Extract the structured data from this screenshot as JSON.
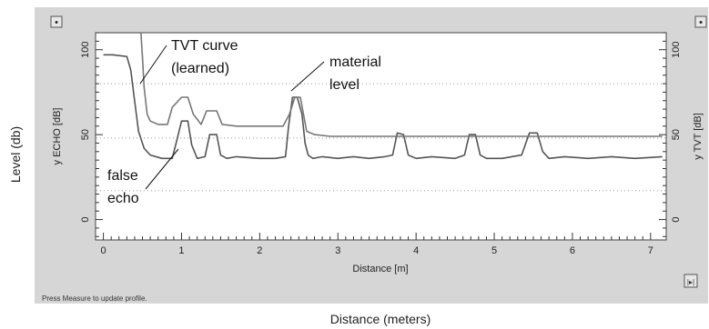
{
  "outer_labels": {
    "y_title": "Level (db)",
    "x_title": "Distance (meters)"
  },
  "status_text": "Press Measure to update profile.",
  "window_buttons": {
    "left_label": "•",
    "right_label": "•",
    "corner_label": "|▸|"
  },
  "chart_data": {
    "type": "line",
    "xlabel": "Distance [m]",
    "ylabel_left": "y ECHO [dB]",
    "ylabel_right": "y TVT [dB]",
    "xlim": [
      -0.1,
      7.2
    ],
    "ylim": [
      -12,
      110
    ],
    "x_ticks": [
      0,
      1,
      2,
      3,
      4,
      5,
      6,
      7
    ],
    "y_ticks": [
      0,
      50,
      100
    ],
    "dotted_grid_levels": [
      17,
      48,
      80
    ],
    "series": [
      {
        "x": [
          0,
          0.12,
          0.3,
          0.35,
          0.4,
          0.45,
          0.52,
          0.6,
          0.75,
          0.88,
          0.93,
          1.0,
          1.08,
          1.13,
          1.2,
          1.3,
          1.36,
          1.45,
          1.5,
          1.58,
          1.7,
          2.0,
          2.2,
          2.33,
          2.37,
          2.42,
          2.48,
          2.54,
          2.58,
          2.62,
          2.68,
          2.8,
          3.0,
          3.2,
          3.4,
          3.6,
          3.7,
          3.76,
          3.84,
          3.9,
          4.0,
          4.2,
          4.5,
          4.62,
          4.68,
          4.76,
          4.82,
          4.9,
          5.1,
          5.35,
          5.45,
          5.55,
          5.62,
          5.7,
          5.9,
          6.2,
          6.5,
          6.8,
          7.15
        ],
        "y": [
          97,
          97,
          96,
          88,
          70,
          52,
          42,
          38,
          36,
          36,
          45,
          58,
          58,
          44,
          36,
          37,
          50,
          50,
          38,
          36,
          37,
          36,
          36,
          37,
          55,
          72,
          72,
          62,
          45,
          38,
          36,
          37,
          36,
          37,
          36,
          37,
          38,
          51,
          50,
          38,
          36,
          37,
          36,
          38,
          50,
          50,
          38,
          36,
          36,
          38,
          51,
          51,
          40,
          36,
          37,
          36,
          37,
          36,
          37
        ]
      },
      {
        "x": [
          0,
          0.48,
          0.5,
          0.52,
          0.56,
          0.6,
          0.7,
          0.82,
          0.88,
          1.0,
          1.08,
          1.15,
          1.25,
          1.32,
          1.45,
          1.52,
          1.7,
          2.0,
          2.3,
          2.38,
          2.45,
          2.52,
          2.6,
          2.7,
          2.9,
          3.5,
          4.0,
          5.0,
          6.0,
          7.15
        ],
        "y": [
          110,
          110,
          96,
          78,
          62,
          58,
          56,
          56,
          66,
          72,
          72,
          62,
          56,
          64,
          64,
          56,
          55,
          55,
          55,
          62,
          72,
          72,
          52,
          50,
          49,
          49,
          49,
          49,
          49,
          49
        ]
      }
    ],
    "annotations": [
      {
        "text": "TVT curve",
        "x": 1.05,
        "y": 103
      },
      {
        "text": "(learned)",
        "x": 1.05,
        "y": 90
      },
      {
        "text": "material",
        "x": 2.72,
        "y": 94
      },
      {
        "text": "level",
        "x": 2.72,
        "y": 80
      },
      {
        "text": "false",
        "x": 0.15,
        "y": 24
      },
      {
        "text": "echo",
        "x": 0.15,
        "y": 11
      }
    ]
  }
}
